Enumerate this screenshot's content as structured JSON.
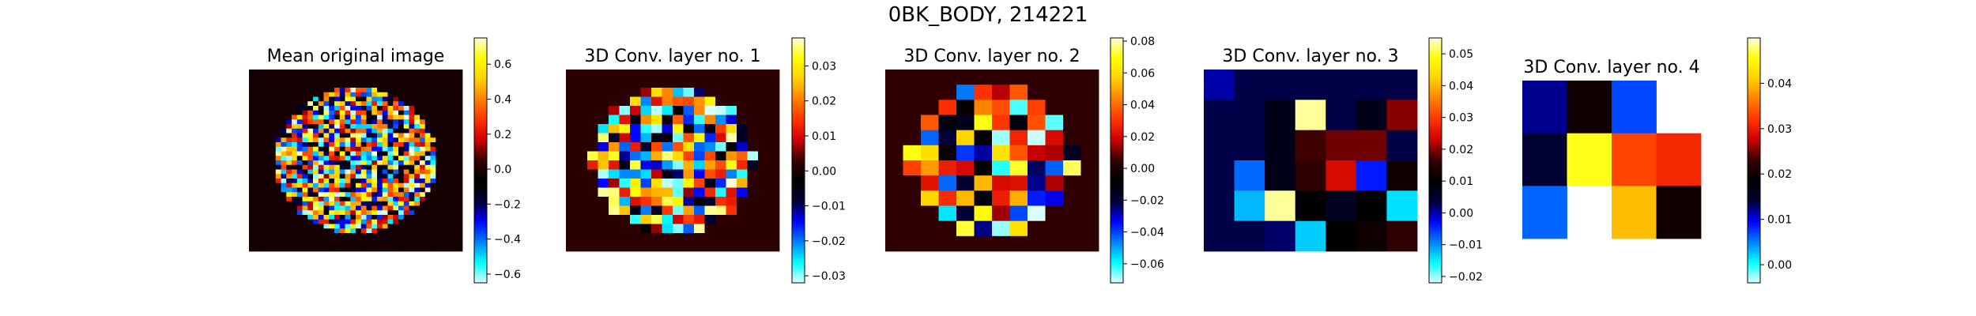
{
  "figure_title": "0BK_BODY, 214221",
  "colormap": {
    "name": "jet-like diverging (cyan-blue-black-red-yellow)",
    "stops": [
      "#e0ffff",
      "#00ffff",
      "#0080ff",
      "#0000ff",
      "#000033",
      "#000000",
      "#330000",
      "#cc0000",
      "#ff3300",
      "#ff8000",
      "#ffd000",
      "#ffff00",
      "#ffffe0"
    ]
  },
  "chart_data": [
    {
      "type": "heatmap",
      "title": "Mean original image",
      "grid_size": [
        40,
        40
      ],
      "colorbar": {
        "range": [
          -0.65,
          0.75
        ],
        "ticks": [
          -0.6,
          -0.4,
          -0.2,
          0.0,
          0.2,
          0.4,
          0.6
        ],
        "tick_labels": [
          "−0.6",
          "−0.4",
          "−0.2",
          "0.0",
          "0.2",
          "0.4",
          "0.6"
        ]
      },
      "background_value": -0.02,
      "pattern": "noisy ellipse of mixed positive/negative values on a dark background"
    },
    {
      "type": "heatmap",
      "title": "3D Conv. layer no. 1",
      "grid_size": [
        20,
        20
      ],
      "colorbar": {
        "range": [
          -0.032,
          0.038
        ],
        "ticks": [
          -0.03,
          -0.02,
          -0.01,
          0.0,
          0.01,
          0.02,
          0.03
        ],
        "tick_labels": [
          "−0.03",
          "−0.02",
          "−0.01",
          "0.00",
          "0.01",
          "0.02",
          "0.03"
        ]
      },
      "background_value": 0.002,
      "pattern": "noisy ellipse of mixed values on a near-black background"
    },
    {
      "type": "heatmap",
      "title": "3D Conv. layer no. 2",
      "grid_size": [
        12,
        12
      ],
      "colorbar": {
        "range": [
          -0.072,
          0.082
        ],
        "ticks": [
          -0.06,
          -0.04,
          -0.02,
          0.0,
          0.02,
          0.04,
          0.06,
          0.08
        ],
        "tick_labels": [
          "−0.06",
          "−0.04",
          "−0.02",
          "0.00",
          "0.02",
          "0.04",
          "0.06",
          "0.08"
        ]
      },
      "background_value": 0.004,
      "pattern": "coarse ellipse of mixed values on a near-black background"
    },
    {
      "type": "heatmap",
      "title": "3D Conv. layer no. 3",
      "colorbar": {
        "range": [
          -0.022,
          0.055
        ],
        "ticks": [
          -0.02,
          -0.01,
          0.0,
          0.01,
          0.02,
          0.03,
          0.04,
          0.05
        ],
        "tick_labels": [
          "−0.02",
          "−0.01",
          "0.00",
          "0.01",
          "0.02",
          "0.03",
          "0.04",
          "0.05"
        ]
      },
      "values": [
        [
          0.0,
          0.003,
          0.003,
          0.003,
          0.003,
          0.003,
          0.003
        ],
        [
          0.003,
          0.003,
          0.007,
          0.053,
          0.003,
          0.007,
          0.02
        ],
        [
          0.003,
          0.003,
          0.007,
          0.017,
          0.019,
          0.019,
          0.003
        ],
        [
          0.003,
          -0.008,
          0.007,
          0.016,
          0.024,
          -0.004,
          0.012
        ],
        [
          0.003,
          -0.012,
          0.053,
          0.01,
          0.006,
          0.01,
          -0.014
        ],
        [
          0.003,
          0.003,
          0.002,
          -0.013,
          0.01,
          0.012,
          0.016
        ]
      ]
    },
    {
      "type": "heatmap",
      "title": "3D Conv. layer no. 4",
      "colorbar": {
        "range": [
          -0.004,
          0.05
        ],
        "ticks": [
          0.0,
          0.01,
          0.02,
          0.03,
          0.04
        ],
        "tick_labels": [
          "0.00",
          "0.01",
          "0.02",
          "0.03",
          "0.04"
        ]
      },
      "values": [
        [
          0.012,
          0.02,
          0.007,
          null
        ],
        [
          0.014,
          0.046,
          0.033,
          0.031
        ],
        [
          0.006,
          null,
          0.04,
          0.02
        ]
      ]
    }
  ]
}
